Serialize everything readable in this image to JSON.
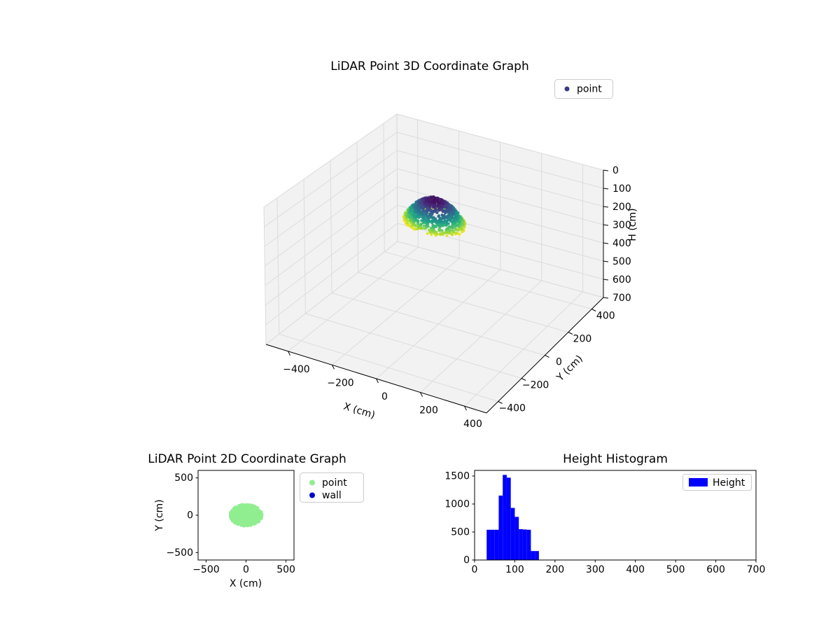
{
  "figure": {
    "background": "#ffffff"
  },
  "chart_data": [
    {
      "type": "scatter3d",
      "title": "LiDAR Point 3D Coordinate Graph",
      "xlabel": "X (cm)",
      "ylabel": "Y (cm)",
      "zlabel": "H (cm)",
      "xlim": [
        -500,
        500
      ],
      "ylim": [
        -500,
        500
      ],
      "zlim": [
        0,
        700
      ],
      "z_axis_inverted": true,
      "xticks": [
        -400,
        -200,
        0,
        200,
        400
      ],
      "yticks": [
        -400,
        -200,
        0,
        200,
        400
      ],
      "zticks": [
        0,
        100,
        200,
        300,
        400,
        500,
        600,
        700
      ],
      "grid": true,
      "pane_color": "#f2f2f2",
      "grid_color": "#dcdcdc",
      "legend": {
        "position": "upper-right-outside",
        "entries": [
          {
            "label": "point",
            "marker_color": "#3d3a89"
          }
        ]
      },
      "series": [
        {
          "name": "point",
          "colormap": "viridis",
          "color_by": "height: dark purple near 30 cm to yellow near 160 cm",
          "cluster": {
            "shape": "ellipsoidal-dome",
            "center_x": 0,
            "center_y": 0,
            "radius_x": 200,
            "radius_y": 145,
            "h_min": 30,
            "h_max": 160
          }
        }
      ]
    },
    {
      "type": "scatter",
      "title": "LiDAR Point 2D Coordinate Graph",
      "xlabel": "X (cm)",
      "ylabel": "Y (cm)",
      "xlim": [
        -600,
        600
      ],
      "ylim": [
        -600,
        600
      ],
      "xticks": [
        -500,
        0,
        500
      ],
      "yticks": [
        500,
        0,
        -500
      ],
      "legend": {
        "position": "outside-upper-right",
        "entries": [
          {
            "label": "point",
            "marker_color": "#90ee90"
          },
          {
            "label": "wall",
            "marker_color": "#0000cd"
          }
        ]
      },
      "series": [
        {
          "name": "point",
          "color": "#90ee90",
          "cluster": {
            "shape": "filled-ellipse",
            "center_x": 0,
            "center_y": 0,
            "radius_x": 200,
            "radius_y": 145
          }
        },
        {
          "name": "wall",
          "color": "#0000cd",
          "cluster": null
        }
      ]
    },
    {
      "type": "bar",
      "title": "Height Histogram",
      "xlabel": "",
      "ylabel": "",
      "xlim": [
        0,
        700
      ],
      "ylim": [
        0,
        1600
      ],
      "xticks": [
        0,
        100,
        200,
        300,
        400,
        500,
        600,
        700
      ],
      "yticks": [
        0,
        500,
        1000,
        1500
      ],
      "bar_color": "#0000ff",
      "legend": {
        "position": "upper-right",
        "entries": [
          {
            "label": "Height",
            "color": "#0000ff"
          }
        ]
      },
      "bins": {
        "start": 30,
        "width": 10,
        "counts": [
          540,
          540,
          540,
          1150,
          1520,
          1470,
          930,
          770,
          550,
          545,
          540,
          160,
          160
        ]
      }
    }
  ]
}
